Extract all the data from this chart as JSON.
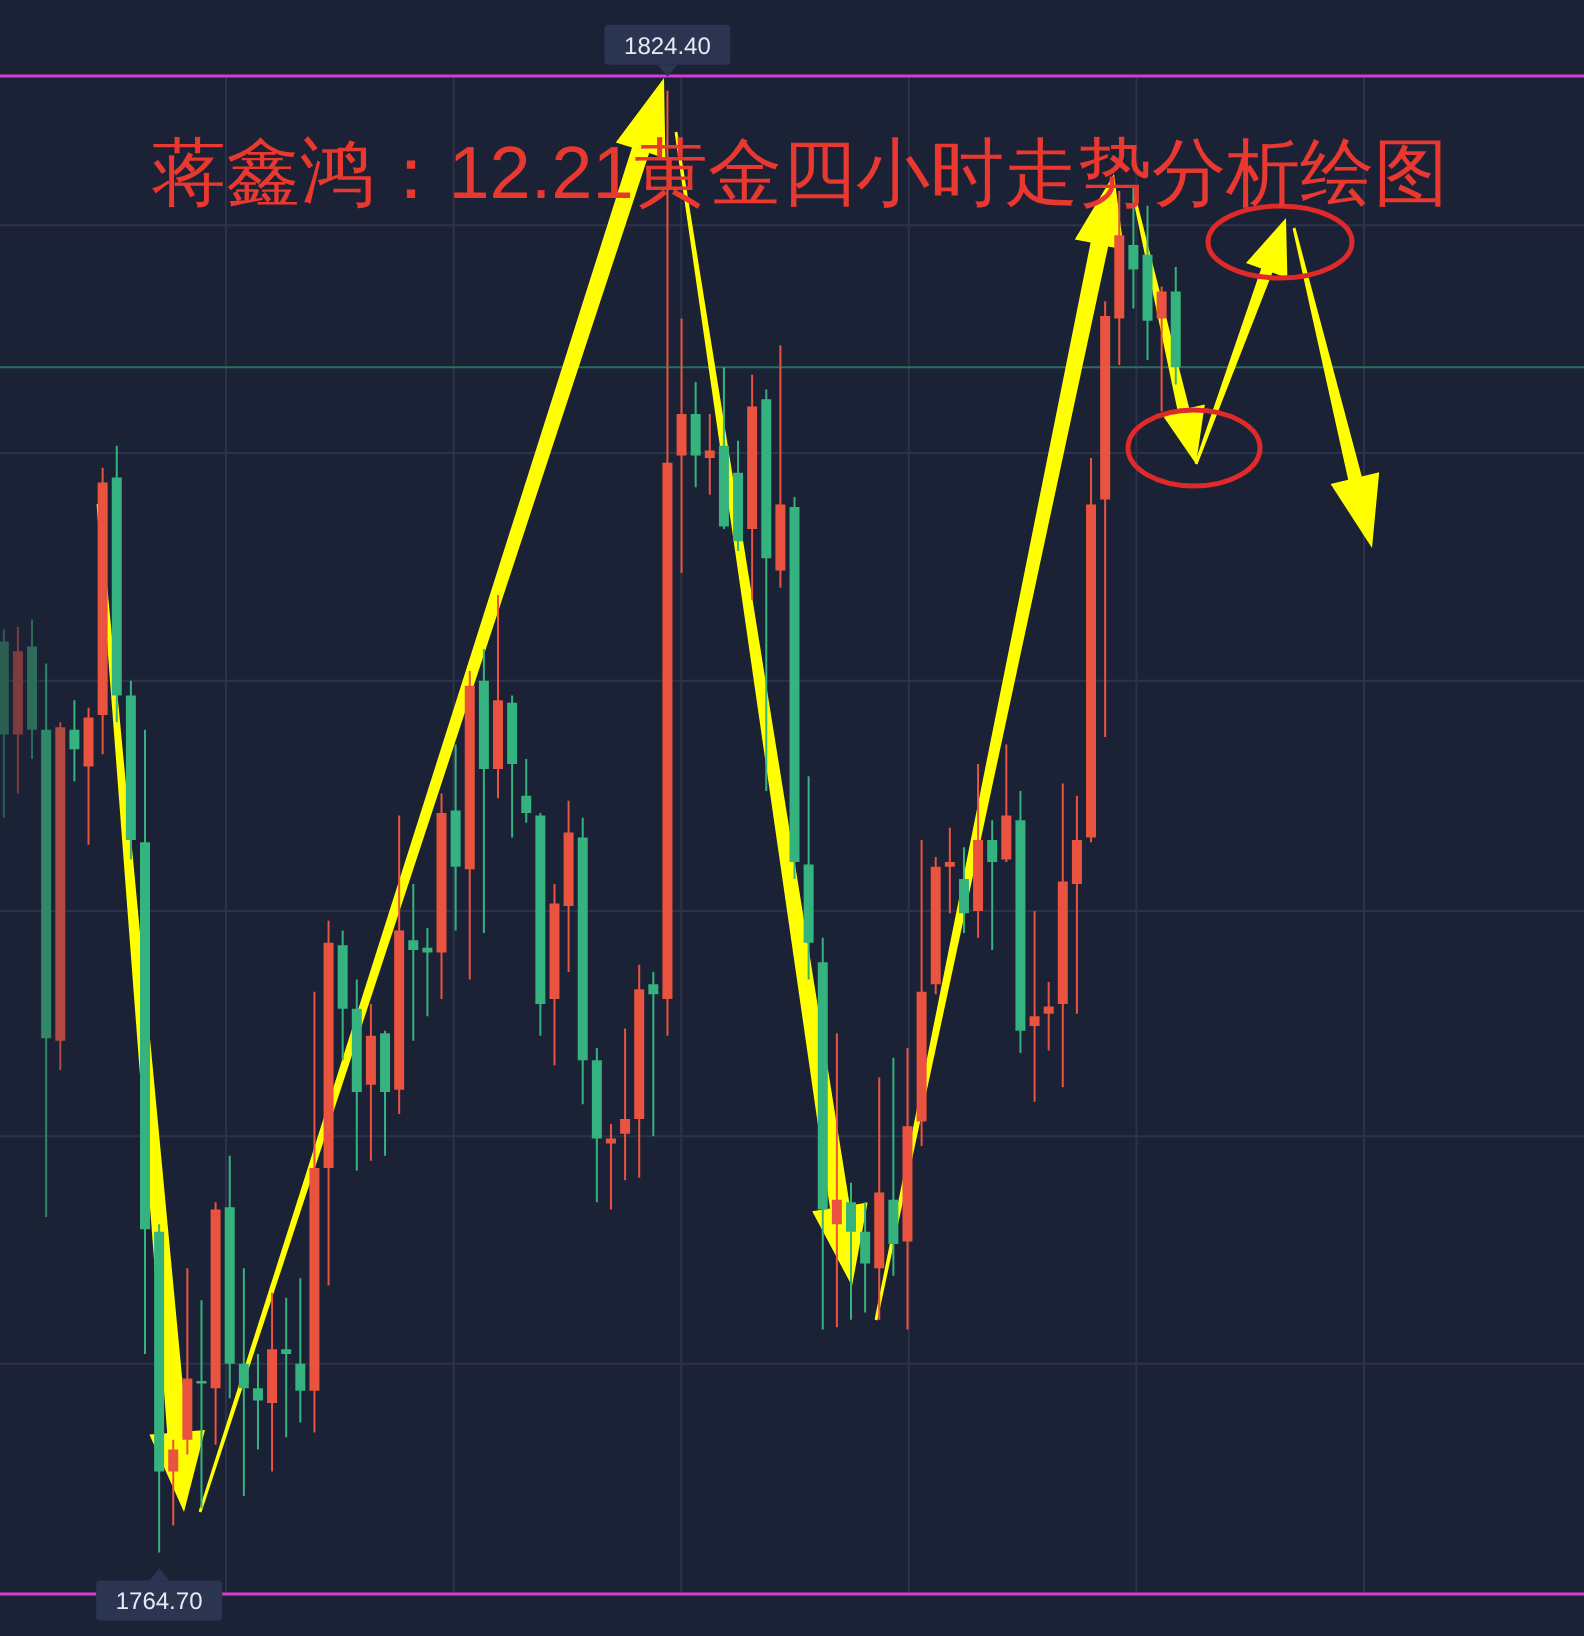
{
  "chart_data": {
    "type": "candlestick",
    "title": "蒋鑫鸿：12.21黄金四小时走势分析绘图",
    "categories": [
      null,
      null,
      null,
      null,
      null,
      null,
      null,
      null,
      null,
      null,
      null,
      null,
      null,
      null,
      null,
      null,
      null,
      null,
      null,
      null,
      null,
      null,
      null,
      null,
      null,
      null,
      null,
      null,
      null,
      null,
      null,
      null,
      null,
      null,
      null,
      null,
      null,
      null,
      null,
      null,
      null,
      null,
      null,
      null,
      null,
      null,
      null,
      null,
      null,
      null,
      null,
      null,
      null,
      null,
      null,
      null,
      null,
      null,
      null,
      null,
      null,
      null,
      null,
      null,
      null,
      null,
      null,
      null,
      null,
      null,
      null,
      null,
      null,
      null,
      null,
      null,
      null,
      null,
      null,
      null,
      null,
      null,
      null,
      null
    ],
    "ohlc": [
      [
        1801.9,
        1802.4,
        1794.7,
        1798.1
      ],
      [
        1798.1,
        1802.5,
        1795.7,
        1801.5
      ],
      [
        1801.7,
        1802.8,
        1797.1,
        1798.3
      ],
      [
        1798.3,
        1801.0,
        1778.4,
        1785.7
      ],
      [
        1785.6,
        1798.6,
        1784.4,
        1798.4
      ],
      [
        1798.3,
        1799.5,
        1796.2,
        1797.5
      ],
      [
        1796.8,
        1799.2,
        1793.6,
        1798.8
      ],
      [
        1798.9,
        1809.0,
        1797.3,
        1808.4
      ],
      [
        1808.6,
        1809.9,
        1798.6,
        1799.7
      ],
      [
        1799.7,
        1800.3,
        1793.0,
        1793.8
      ],
      [
        1793.7,
        1798.3,
        1772.8,
        1777.9
      ],
      [
        1777.8,
        1778.1,
        1764.7,
        1768.0
      ],
      [
        1768.0,
        1769.3,
        1765.8,
        1768.9
      ],
      [
        1769.3,
        1776.3,
        1768.7,
        1771.8
      ],
      [
        1771.7,
        1775.0,
        1766.5,
        1771.6
      ],
      [
        1771.4,
        1779.0,
        1769.1,
        1778.7
      ],
      [
        1778.8,
        1780.9,
        1771.0,
        1772.4
      ],
      [
        1772.4,
        1776.3,
        1767.0,
        1771.4
      ],
      [
        1771.4,
        1772.8,
        1768.9,
        1770.9
      ],
      [
        1770.8,
        1775.3,
        1768.0,
        1773.0
      ],
      [
        1773.0,
        1775.1,
        1769.4,
        1772.8
      ],
      [
        1772.4,
        1775.9,
        1770.0,
        1771.3
      ],
      [
        1771.3,
        1787.6,
        1769.6,
        1780.4
      ],
      [
        1780.4,
        1790.5,
        1775.6,
        1789.6
      ],
      [
        1789.5,
        1790.1,
        1784.8,
        1786.9
      ],
      [
        1786.9,
        1788.1,
        1780.3,
        1783.5
      ],
      [
        1783.8,
        1787.1,
        1780.7,
        1785.8
      ],
      [
        1785.9,
        1786.0,
        1780.9,
        1783.5
      ],
      [
        1783.6,
        1794.8,
        1782.6,
        1790.1
      ],
      [
        1789.7,
        1792.0,
        1785.6,
        1789.3
      ],
      [
        1789.4,
        1790.2,
        1786.6,
        1789.2
      ],
      [
        1789.2,
        1795.7,
        1787.3,
        1794.9
      ],
      [
        1795.0,
        1797.7,
        1790.1,
        1792.7
      ],
      [
        1792.6,
        1800.7,
        1788.1,
        1800.1
      ],
      [
        1800.3,
        1801.6,
        1790.0,
        1796.7
      ],
      [
        1796.7,
        1803.8,
        1795.5,
        1799.5
      ],
      [
        1799.4,
        1799.7,
        1793.9,
        1796.9
      ],
      [
        1795.6,
        1797.1,
        1794.5,
        1794.9
      ],
      [
        1794.8,
        1794.9,
        1785.8,
        1787.1
      ],
      [
        1787.3,
        1792.0,
        1784.6,
        1791.2
      ],
      [
        1791.1,
        1795.4,
        1788.4,
        1794.1
      ],
      [
        1793.9,
        1794.7,
        1783.0,
        1784.8
      ],
      [
        1784.8,
        1785.3,
        1779.0,
        1781.6
      ],
      [
        1781.4,
        1782.2,
        1778.7,
        1781.6
      ],
      [
        1781.8,
        1786.1,
        1779.9,
        1782.4
      ],
      [
        1782.4,
        1788.7,
        1780.0,
        1787.7
      ],
      [
        1787.9,
        1788.4,
        1781.7,
        1787.5
      ],
      [
        1787.3,
        1824.4,
        1785.8,
        1809.2
      ],
      [
        1809.5,
        1815.1,
        1804.7,
        1811.2
      ],
      [
        1811.2,
        1812.5,
        1808.2,
        1809.5
      ],
      [
        1809.4,
        1811.2,
        1807.9,
        1809.7
      ],
      [
        1809.9,
        1813.1,
        1806.5,
        1806.6
      ],
      [
        1808.8,
        1810.1,
        1805.6,
        1806.0
      ],
      [
        1806.5,
        1812.8,
        1803.6,
        1811.5
      ],
      [
        1811.8,
        1812.2,
        1795.8,
        1805.3
      ],
      [
        1804.8,
        1814.0,
        1804.1,
        1807.5
      ],
      [
        1807.4,
        1807.8,
        1792.2,
        1792.9
      ],
      [
        1792.8,
        1796.4,
        1788.1,
        1789.6
      ],
      [
        1788.8,
        1789.8,
        1773.8,
        1778.7
      ],
      [
        1778.1,
        1785.9,
        1773.9,
        1779.1
      ],
      [
        1779.0,
        1779.8,
        1774.2,
        1777.8
      ],
      [
        1777.8,
        1779.0,
        1774.5,
        1776.5
      ],
      [
        1776.3,
        1784.1,
        1774.2,
        1779.4
      ],
      [
        1779.1,
        1784.9,
        1776.0,
        1777.3
      ],
      [
        1777.4,
        1785.3,
        1773.8,
        1782.1
      ],
      [
        1782.3,
        1793.8,
        1781.3,
        1787.6
      ],
      [
        1787.9,
        1793.1,
        1787.5,
        1792.7
      ],
      [
        1792.7,
        1794.3,
        1790.8,
        1792.9
      ],
      [
        1792.2,
        1793.5,
        1790.0,
        1790.8
      ],
      [
        1790.9,
        1796.9,
        1789.8,
        1793.8
      ],
      [
        1793.8,
        1794.6,
        1789.3,
        1792.9
      ],
      [
        1793.0,
        1797.7,
        1792.9,
        1794.8
      ],
      [
        1794.6,
        1795.8,
        1785.1,
        1786.0
      ],
      [
        1786.2,
        1790.9,
        1783.1,
        1786.6
      ],
      [
        1786.7,
        1788.0,
        1785.2,
        1787.0
      ],
      [
        1787.1,
        1796.1,
        1783.7,
        1792.1
      ],
      [
        1792.0,
        1795.6,
        1786.7,
        1793.8
      ],
      [
        1793.9,
        1809.4,
        1793.7,
        1807.5
      ],
      [
        1807.7,
        1815.8,
        1798.0,
        1815.2
      ],
      [
        1815.1,
        1820.3,
        1813.2,
        1818.5
      ],
      [
        1818.1,
        1820.5,
        1815.5,
        1817.1
      ],
      [
        1817.7,
        1819.7,
        1813.4,
        1815.0
      ],
      [
        1815.1,
        1816.4,
        1811.3,
        1816.2
      ],
      [
        1816.2,
        1817.2,
        1812.4,
        1813.1
      ]
    ],
    "colors": [
      "#2a5f52",
      "#7c3b3c",
      "#2d6c5b",
      "#2f8868",
      "#b04a42",
      "#34b37e",
      "#e9533f",
      "#e9533f",
      "#34b37e",
      "#34b37e",
      "#34b37e",
      "#34b37e",
      "#e9533f",
      "#e9533f",
      "#34b37e",
      "#e9533f",
      "#34b37e",
      "#34b37e",
      "#34b37e",
      "#e9533f",
      "#34b37e",
      "#34b37e",
      "#e9533f",
      "#e9533f",
      "#34b37e",
      "#34b37e",
      "#e9533f",
      "#34b37e",
      "#e9533f",
      "#34b37e",
      "#34b37e",
      "#e9533f",
      "#34b37e",
      "#e9533f",
      "#34b37e",
      "#e9533f",
      "#34b37e",
      "#34b37e",
      "#34b37e",
      "#e9533f",
      "#e9533f",
      "#34b37e",
      "#34b37e",
      "#e9533f",
      "#e9533f",
      "#e9533f",
      "#34b37e",
      "#e9533f",
      "#e9533f",
      "#34b37e",
      "#e9533f",
      "#34b37e",
      "#34b37e",
      "#e9533f",
      "#34b37e",
      "#e9533f",
      "#34b37e",
      "#34b37e",
      "#34b37e",
      "#e9533f",
      "#34b37e",
      "#34b37e",
      "#e9533f",
      "#34b37e",
      "#e9533f",
      "#e9533f",
      "#e9533f",
      "#e9533f",
      "#34b37e",
      "#e9533f",
      "#34b37e",
      "#e9533f",
      "#34b37e",
      "#e9533f",
      "#e9533f",
      "#e9533f",
      "#e9533f",
      "#e9533f",
      "#e9533f",
      "#e9533f",
      "#34b37e",
      "#34b37e",
      "#e9533f",
      "#34b37e"
    ],
    "ylim": [
      1763.0,
      1825.0
    ],
    "yticks": [
      {
        "value": 1818.9,
        "label": null
      },
      {
        "value": 1809.6,
        "label": null
      },
      {
        "value": 1800.3,
        "label": null
      },
      {
        "value": 1790.9,
        "label": null
      },
      {
        "value": 1781.7,
        "label": null
      },
      {
        "value": 1772.4,
        "label": null
      }
    ],
    "grid": true,
    "ref_lines": [
      {
        "axis": "y",
        "value": 1813.1,
        "color": "#27705e"
      }
    ],
    "annotations": [
      {
        "text": "1824.40",
        "y": 1824.4
      },
      {
        "text": "1764.70",
        "y": 1764.7
      }
    ]
  }
}
